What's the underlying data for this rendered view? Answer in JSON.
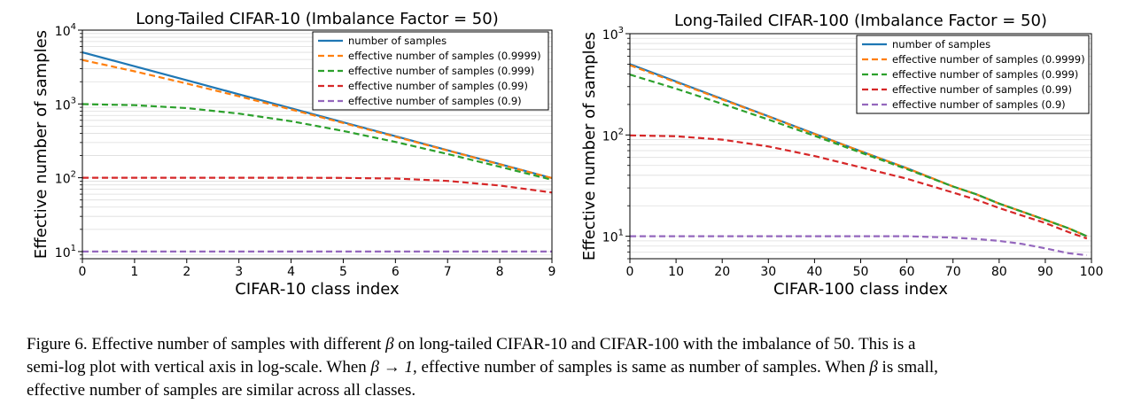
{
  "chart_data": [
    {
      "type": "line",
      "title": "Long-Tailed CIFAR-10 (Imbalance Factor = 50)",
      "xlabel": "CIFAR-10 class index",
      "ylabel": "Effective number of samples",
      "xlim": [
        0,
        9
      ],
      "ylim": [
        8,
        10000
      ],
      "yscale": "log",
      "x_ticks": [
        "0",
        "1",
        "2",
        "3",
        "4",
        "5",
        "6",
        "7",
        "8",
        "9"
      ],
      "y_ticks": [
        {
          "base": "10",
          "exp": "1",
          "value": 10
        },
        {
          "base": "10",
          "exp": "2",
          "value": 100
        },
        {
          "base": "10",
          "exp": "3",
          "value": 1000
        },
        {
          "base": "10",
          "exp": "4",
          "value": 10000
        }
      ],
      "grid": "horizontal minor",
      "legend_position": "top-right",
      "x": [
        0,
        1,
        2,
        3,
        4,
        5,
        6,
        7,
        8,
        9
      ],
      "series": [
        {
          "name": "number of samples",
          "color": "#1f77b4",
          "style": "solid",
          "values": [
            5000,
            3234,
            2091,
            1352,
            874,
            565,
            366,
            236,
            153,
            99
          ]
        },
        {
          "name": "effective number of samples (0.9999)",
          "color": "#ff7f0e",
          "style": "dashed",
          "values": [
            3935,
            2764,
            1887,
            1269,
            841,
            552,
            360,
            234,
            152,
            99
          ]
        },
        {
          "name": "effective number of samples (0.999)",
          "color": "#2ca02c",
          "style": "dashed",
          "values": [
            994,
            961,
            878,
            741,
            583,
            431,
            306,
            210,
            141,
            94
          ]
        },
        {
          "name": "effective number of samples (0.99)",
          "color": "#d62728",
          "style": "dashed",
          "values": [
            100,
            100,
            100,
            100,
            100,
            99.6,
            97.5,
            90.6,
            78.5,
            63
          ]
        },
        {
          "name": "effective number of samples (0.9)",
          "color": "#9467bd",
          "style": "dashed",
          "values": [
            10,
            10,
            10,
            10,
            10,
            10,
            10,
            10,
            10,
            10
          ]
        }
      ]
    },
    {
      "type": "line",
      "title": "Long-Tailed CIFAR-100 (Imbalance Factor = 50)",
      "xlabel": "CIFAR-100 class index",
      "ylabel": "Effective number of samples",
      "xlim": [
        0,
        100
      ],
      "ylim": [
        6,
        1000
      ],
      "yscale": "log",
      "x_ticks": [
        "0",
        "10",
        "20",
        "30",
        "40",
        "50",
        "60",
        "70",
        "80",
        "90",
        "100"
      ],
      "y_ticks": [
        {
          "base": "10",
          "exp": "1",
          "value": 10
        },
        {
          "base": "10",
          "exp": "2",
          "value": 100
        },
        {
          "base": "10",
          "exp": "3",
          "value": 1000
        }
      ],
      "grid": "horizontal minor",
      "legend_position": "top-right",
      "x": [
        0,
        10,
        20,
        30,
        40,
        50,
        60,
        70,
        75,
        80,
        85,
        90,
        95,
        99
      ],
      "series": [
        {
          "name": "number of samples",
          "color": "#1f77b4",
          "style": "solid",
          "values": [
            500,
            337,
            227,
            153,
            103,
            69,
            47,
            31,
            26,
            21,
            17.5,
            14.5,
            12,
            10
          ]
        },
        {
          "name": "effective number of samples (0.9999)",
          "color": "#ff7f0e",
          "style": "dashed",
          "values": [
            488,
            331,
            224,
            152,
            102,
            69,
            47,
            31,
            26,
            21,
            17.5,
            14.5,
            12,
            10
          ]
        },
        {
          "name": "effective number of samples (0.999)",
          "color": "#2ca02c",
          "style": "dashed",
          "values": [
            394,
            286,
            203,
            142,
            98,
            67,
            46,
            31,
            26,
            21,
            17.5,
            14.5,
            12,
            10
          ]
        },
        {
          "name": "effective number of samples (0.99)",
          "color": "#d62728",
          "style": "dashed",
          "values": [
            99,
            97,
            90,
            77,
            62,
            48,
            37,
            27,
            23,
            19,
            16,
            13.5,
            11,
            9.5
          ]
        },
        {
          "name": "effective number of samples (0.9)",
          "color": "#9467bd",
          "style": "dashed",
          "values": [
            10,
            10,
            10,
            10,
            10,
            10,
            10,
            9.7,
            9.4,
            9,
            8.4,
            7.6,
            6.8,
            6.5
          ]
        }
      ]
    }
  ],
  "caption": {
    "line1_a": "Figure 6. Effective number of samples with different ",
    "beta": "β",
    "line1_b": " on long-tailed CIFAR-10 and CIFAR-100 with the imbalance of 50.  This is a",
    "line2_a": "semi-log plot with vertical axis in log-scale. When ",
    "beta_limit": "β → 1",
    "line2_b": ", effective number of samples is same as number of samples. When ",
    "line2_c": " is small,",
    "line3": "effective number of samples are similar across all classes."
  }
}
